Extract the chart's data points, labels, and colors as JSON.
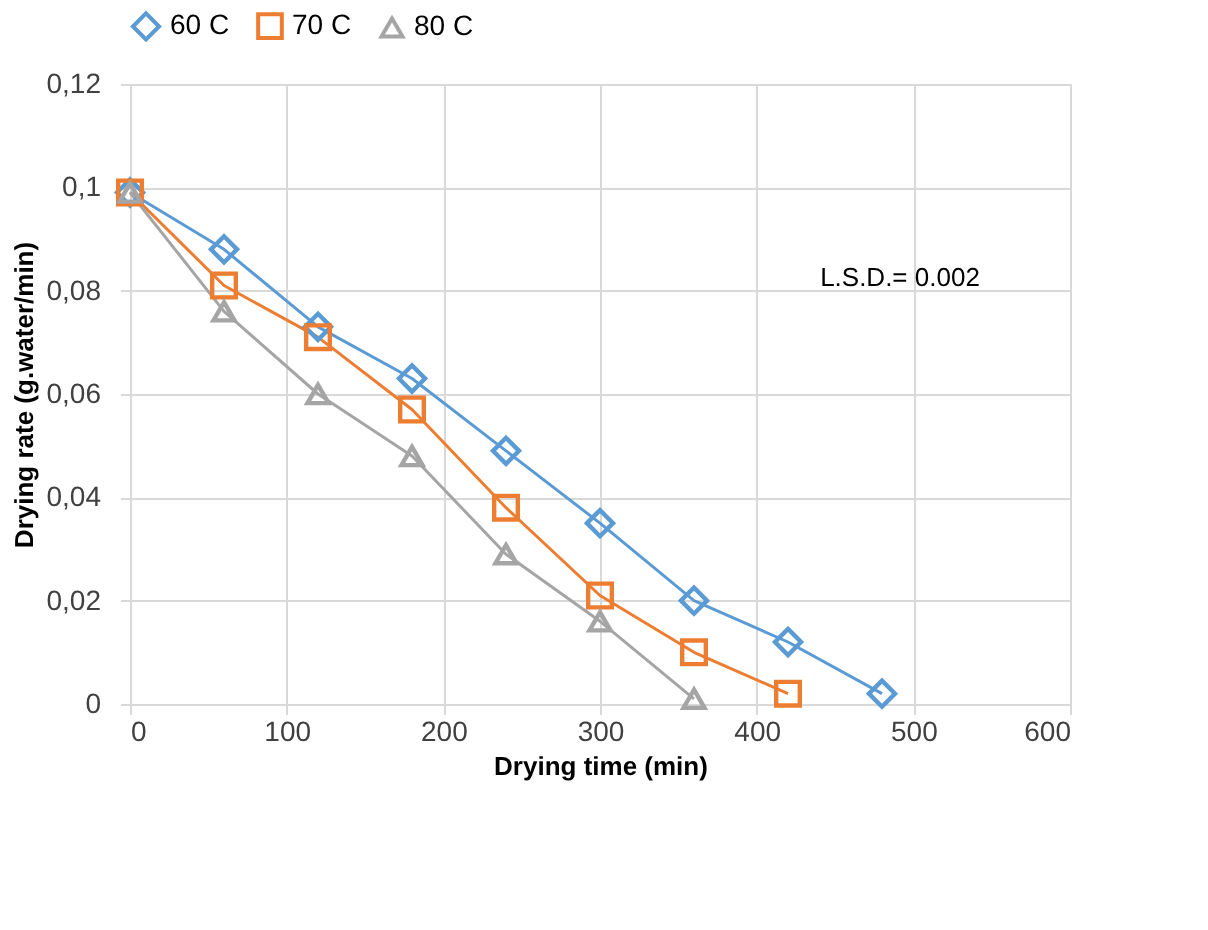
{
  "chart_data": {
    "type": "line",
    "xlabel": "Drying time (min)",
    "ylabel": "Drying rate (g.water/min)",
    "x": [
      0,
      60,
      120,
      180,
      240,
      300,
      360,
      420,
      480
    ],
    "series": [
      {
        "name": "60 C",
        "color": "#5b9bd5",
        "marker": "diamond",
        "values": [
          0.099,
          0.088,
          0.073,
          0.063,
          0.049,
          0.035,
          0.02,
          0.012,
          0.002
        ]
      },
      {
        "name": "70 C",
        "color": "#ed7d31",
        "marker": "square",
        "values": [
          0.099,
          0.081,
          0.071,
          0.057,
          0.038,
          0.021,
          0.01,
          0.002,
          null
        ]
      },
      {
        "name": "80 C",
        "color": "#a5a5a5",
        "marker": "triangle",
        "values": [
          0.099,
          0.076,
          0.06,
          0.048,
          0.029,
          0.016,
          0.001,
          null,
          null
        ]
      }
    ],
    "xlim": [
      0,
      600
    ],
    "xticks": [
      0,
      100,
      200,
      300,
      400,
      500,
      600
    ],
    "ylim": [
      0,
      0.12
    ],
    "yticks": [
      0,
      {
        "value": 0.02,
        "label": "0,02"
      },
      {
        "value": 0.04,
        "label": "0,04"
      },
      {
        "value": 0.06,
        "label": "0,06"
      },
      {
        "value": 0.08,
        "label": "0,08"
      },
      {
        "value": 0.1,
        "label": "0,1"
      },
      {
        "value": 0.12,
        "label": "0,12"
      }
    ],
    "annotations": [
      "L.S.D.= 0.002"
    ],
    "grid": true,
    "legend": "top",
    "line_style": "solid"
  }
}
